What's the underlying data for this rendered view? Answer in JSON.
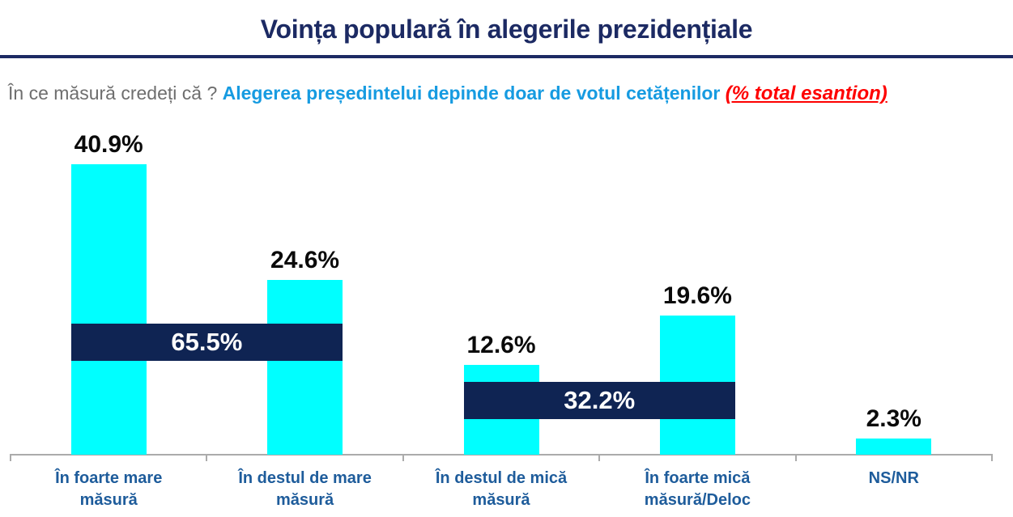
{
  "title": "Voința populară în alegerile prezidențiale",
  "subtitle": {
    "question": "În ce măsură credeți că ?",
    "statement": "Alegerea președintelui depinde doar de votul cetățenilor",
    "note": "(% total esantion)"
  },
  "colors": {
    "title_navy": "#1C2A63",
    "rule_navy": "#1C2A63",
    "subtitle_gray": "#6E6E6E",
    "subtitle_blue": "#169BE1",
    "note_red": "#FE0000",
    "bar_cyan": "#00FFFF",
    "band_navy": "#0F2453",
    "value_black": "#0A0A0A",
    "category_blue": "#1E5C9B",
    "axis_gray": "#ABABAB"
  },
  "chart_data": {
    "type": "bar",
    "title": "Voința populară în alegerile prezidențiale",
    "xlabel": "",
    "ylabel": "",
    "ylim": [
      0,
      45
    ],
    "grid": false,
    "legend": "none",
    "categories": [
      "În foarte mare măsură",
      "În destul de mare măsură",
      "În destul de mică măsură",
      "În foarte mică măsură/Deloc",
      "NS/NR"
    ],
    "category_lines": [
      [
        "În foarte mare",
        "măsură"
      ],
      [
        "În destul de mare",
        "măsură"
      ],
      [
        "În destul de mică",
        "măsură"
      ],
      [
        "În foarte mică",
        "măsură/Deloc"
      ],
      [
        "NS/NR"
      ]
    ],
    "values": [
      40.9,
      24.6,
      12.6,
      19.6,
      2.3
    ],
    "value_labels": [
      "40.9%",
      "24.6%",
      "12.6%",
      "19.6%",
      "2.3%"
    ],
    "groups": [
      {
        "label": "65.5%",
        "value": 65.5,
        "span": [
          0,
          1
        ]
      },
      {
        "label": "32.2%",
        "value": 32.2,
        "span": [
          2,
          3
        ]
      }
    ]
  }
}
